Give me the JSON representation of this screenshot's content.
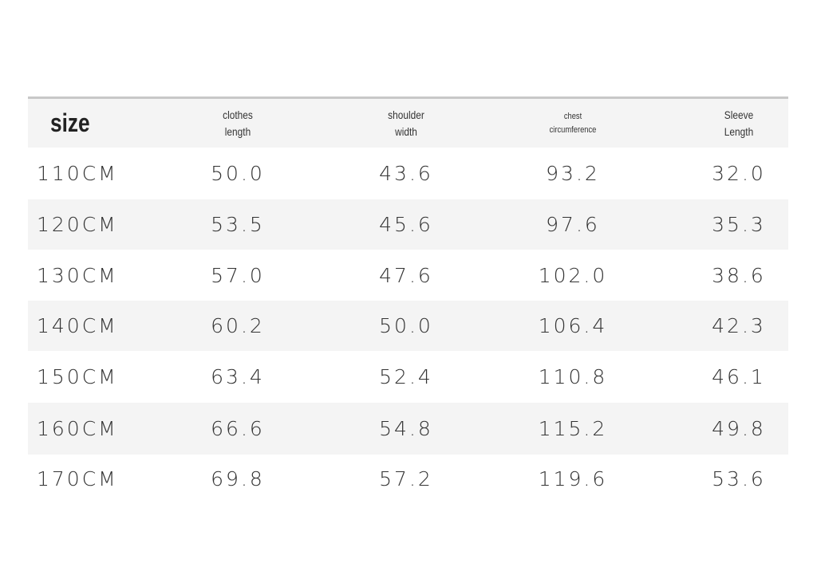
{
  "table": {
    "header": [
      [
        "size"
      ],
      [
        "clothes",
        "length"
      ],
      [
        "shoulder",
        "width"
      ],
      [
        "chest",
        "circumference"
      ],
      [
        "Sleeve",
        "Length"
      ]
    ],
    "rows": [
      [
        "110CM",
        "50.0",
        "43.6",
        "93.2",
        "32.0"
      ],
      [
        "120CM",
        "53.5",
        "45.6",
        "97.6",
        "35.3"
      ],
      [
        "130CM",
        "57.0",
        "47.6",
        "102.0",
        "38.6"
      ],
      [
        "140CM",
        "60.2",
        "50.0",
        "106.4",
        "42.3"
      ],
      [
        "150CM",
        "63.4",
        "52.4",
        "110.8",
        "46.1"
      ],
      [
        "160CM",
        "66.6",
        "54.8",
        "115.2",
        "49.8"
      ],
      [
        "170CM",
        "69.8",
        "57.2",
        "119.6",
        "53.6"
      ]
    ]
  }
}
